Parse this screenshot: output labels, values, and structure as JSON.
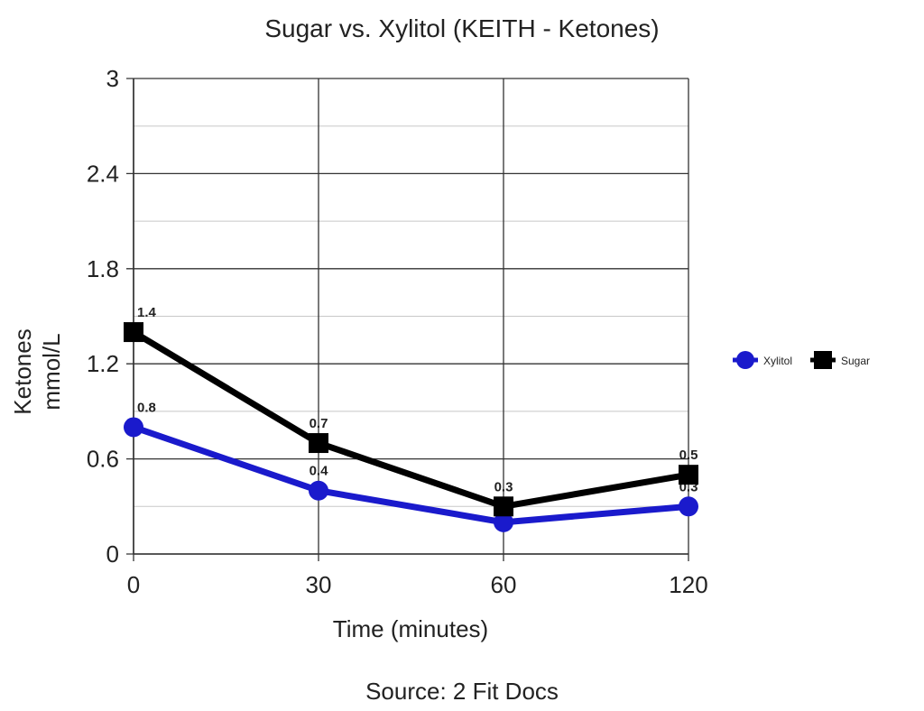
{
  "chart_data": {
    "type": "line",
    "title": "Sugar vs. Xylitol (KEITH - Ketones)",
    "xlabel": "Time (minutes)",
    "ylabel_lines": [
      "Ketones",
      "mmol/L"
    ],
    "source": "Source: 2 Fit Docs",
    "categories": [
      "0",
      "30",
      "60",
      "120"
    ],
    "y_ticks": [
      "0",
      "0.6",
      "1.2",
      "1.8",
      "2.4",
      "3"
    ],
    "ylim": [
      0,
      3
    ],
    "grid": true,
    "legend_position": "right",
    "series": [
      {
        "name": "Xylitol",
        "values": [
          0.8,
          0.4,
          0.2,
          0.3
        ],
        "labels": [
          "0.8",
          "0.4",
          "",
          "0.3"
        ],
        "color": "#1a1acc",
        "marker": "circle"
      },
      {
        "name": "Sugar",
        "values": [
          1.4,
          0.7,
          0.3,
          0.5
        ],
        "labels": [
          "1.4",
          "0.7",
          "0.3",
          "0.5"
        ],
        "color": "#000000",
        "marker": "square"
      }
    ]
  }
}
